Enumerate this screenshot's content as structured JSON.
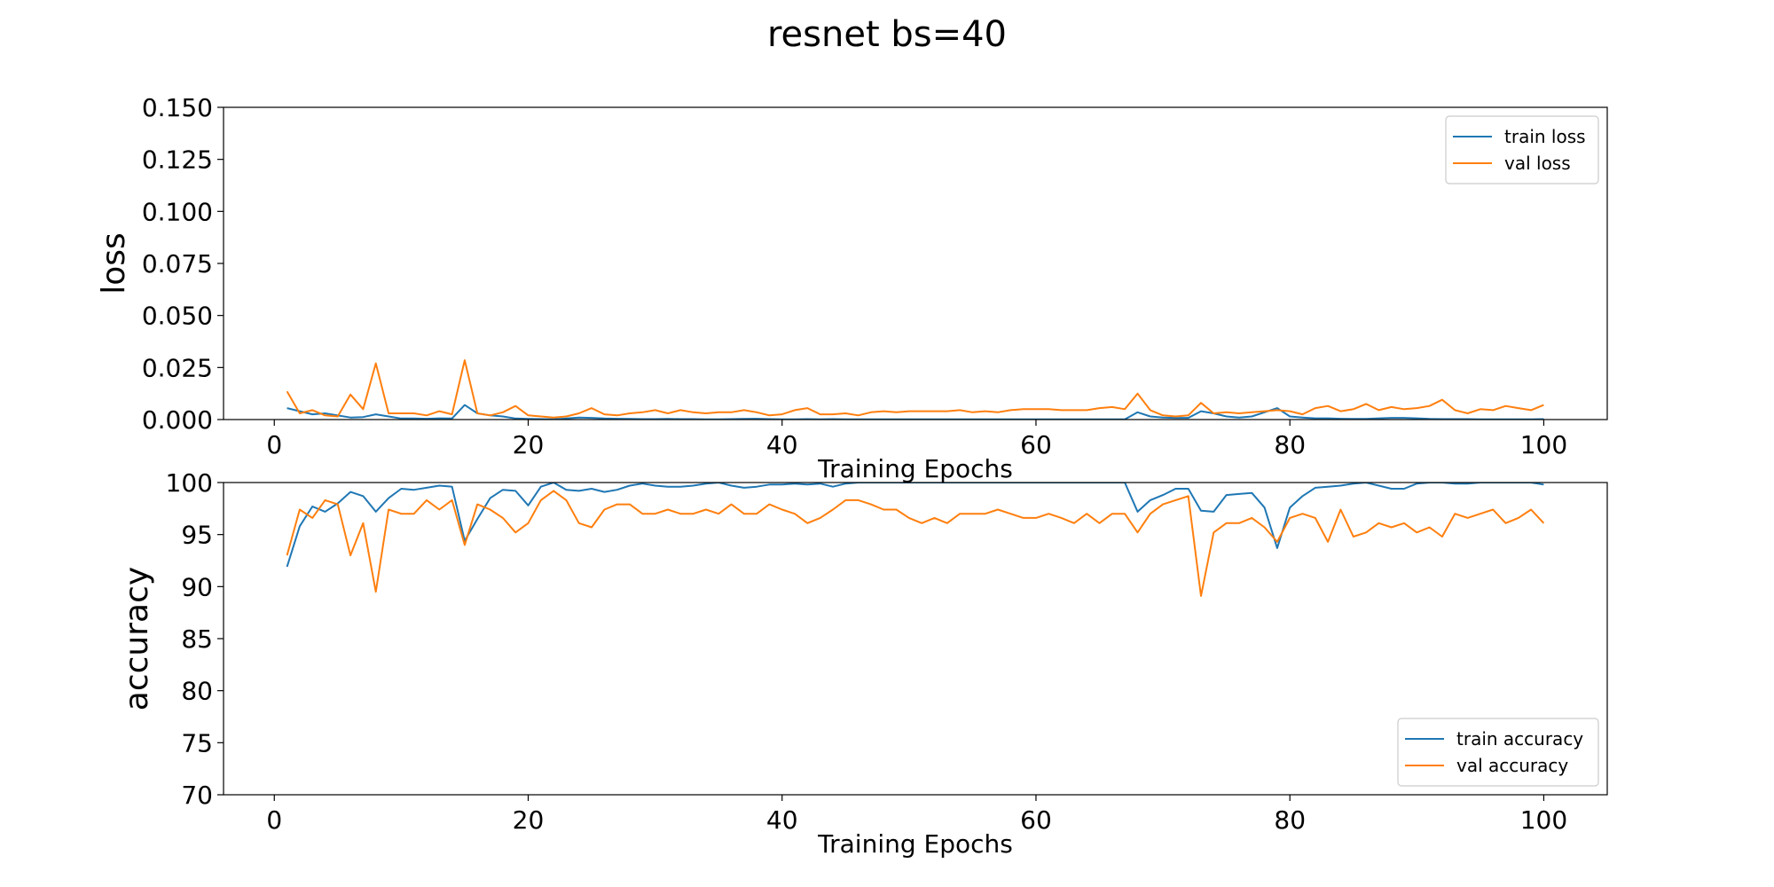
{
  "figure": {
    "title": "resnet bs=40"
  },
  "chart_data": [
    {
      "type": "line",
      "ylabel": "loss",
      "xlabel": "Training Epochs",
      "xlim": [
        -4,
        105
      ],
      "ylim": [
        0,
        0.15
      ],
      "xticks": [
        0,
        20,
        40,
        60,
        80,
        100
      ],
      "yticks": [
        0,
        0.025,
        0.05,
        0.075,
        0.1,
        0.125,
        0.15
      ],
      "ytick_labels": [
        "0.000",
        "0.025",
        "0.050",
        "0.075",
        "0.100",
        "0.125",
        "0.150"
      ],
      "legend_position": "top-right",
      "series": [
        {
          "name": "train loss",
          "color": "#1f77b4",
          "x": [
            1,
            2,
            3,
            4,
            5,
            6,
            7,
            8,
            9,
            10,
            11,
            12,
            13,
            14,
            15,
            16,
            17,
            18,
            19,
            20,
            21,
            22,
            23,
            24,
            25,
            26,
            27,
            28,
            29,
            30,
            31,
            32,
            33,
            34,
            35,
            36,
            37,
            38,
            39,
            40,
            41,
            42,
            43,
            44,
            45,
            46,
            47,
            48,
            49,
            50,
            51,
            52,
            53,
            54,
            55,
            56,
            57,
            58,
            59,
            60,
            61,
            62,
            63,
            64,
            65,
            66,
            67,
            68,
            69,
            70,
            71,
            72,
            73,
            74,
            75,
            76,
            77,
            78,
            79,
            80,
            81,
            82,
            83,
            84,
            85,
            86,
            87,
            88,
            89,
            90,
            91,
            92,
            93,
            94,
            95,
            96,
            97,
            98,
            99,
            100
          ],
          "y": [
            0.0055,
            0.004,
            0.0025,
            0.003,
            0.002,
            0.001,
            0.0012,
            0.0025,
            0.0015,
            0.0005,
            0.0005,
            0.0004,
            0.0006,
            0.0005,
            0.007,
            0.003,
            0.002,
            0.0015,
            0.0005,
            0.0003,
            0.0002,
            0.0001,
            0.0005,
            0.001,
            0.0008,
            0.0005,
            0.0004,
            0.0003,
            0.0002,
            0.0002,
            0.0003,
            0.0002,
            0.0002,
            0.0001,
            0.0001,
            0.0002,
            0.0003,
            0.0004,
            0.0002,
            0.0001,
            0.0001,
            0.0002,
            0.0001,
            0.0002,
            0.0001,
            0.0001,
            0.0001,
            0.0001,
            0.0001,
            0.0001,
            0.0001,
            0.0001,
            0.0001,
            0.0001,
            0.0001,
            0.0001,
            0.0001,
            0.0001,
            0.0001,
            0.0001,
            0.0001,
            0.0001,
            0.0001,
            0.0001,
            0.0001,
            0.0001,
            0.0001,
            0.0035,
            0.0015,
            0.001,
            0.0008,
            0.0008,
            0.004,
            0.003,
            0.0015,
            0.001,
            0.0015,
            0.0035,
            0.0055,
            0.0015,
            0.001,
            0.0006,
            0.0006,
            0.0004,
            0.0003,
            0.0003,
            0.0006,
            0.0008,
            0.0008,
            0.0006,
            0.0003,
            0.0002,
            0.0002,
            0.0002,
            0.0001,
            0.0001,
            0.0001,
            0.0001,
            0.0001,
            0.0002
          ]
        },
        {
          "name": "val loss",
          "color": "#ff7f0e",
          "x": [
            1,
            2,
            3,
            4,
            5,
            6,
            7,
            8,
            9,
            10,
            11,
            12,
            13,
            14,
            15,
            16,
            17,
            18,
            19,
            20,
            21,
            22,
            23,
            24,
            25,
            26,
            27,
            28,
            29,
            30,
            31,
            32,
            33,
            34,
            35,
            36,
            37,
            38,
            39,
            40,
            41,
            42,
            43,
            44,
            45,
            46,
            47,
            48,
            49,
            50,
            51,
            52,
            53,
            54,
            55,
            56,
            57,
            58,
            59,
            60,
            61,
            62,
            63,
            64,
            65,
            66,
            67,
            68,
            69,
            70,
            71,
            72,
            73,
            74,
            75,
            76,
            77,
            78,
            79,
            80,
            81,
            82,
            83,
            84,
            85,
            86,
            87,
            88,
            89,
            90,
            91,
            92,
            93,
            94,
            95,
            96,
            97,
            98,
            99,
            100
          ],
          "y": [
            0.0135,
            0.003,
            0.0045,
            0.002,
            0.0015,
            0.012,
            0.005,
            0.027,
            0.003,
            0.003,
            0.003,
            0.002,
            0.004,
            0.0025,
            0.0285,
            0.003,
            0.002,
            0.0035,
            0.0065,
            0.002,
            0.0015,
            0.001,
            0.0015,
            0.003,
            0.0055,
            0.0025,
            0.002,
            0.003,
            0.0035,
            0.0045,
            0.003,
            0.0045,
            0.0035,
            0.003,
            0.0035,
            0.0035,
            0.0045,
            0.0035,
            0.002,
            0.0025,
            0.0045,
            0.0055,
            0.0025,
            0.0025,
            0.003,
            0.002,
            0.0035,
            0.004,
            0.0035,
            0.004,
            0.004,
            0.004,
            0.004,
            0.0045,
            0.0035,
            0.004,
            0.0035,
            0.0045,
            0.005,
            0.005,
            0.005,
            0.0045,
            0.0045,
            0.0045,
            0.0055,
            0.006,
            0.005,
            0.0125,
            0.0045,
            0.002,
            0.0015,
            0.002,
            0.008,
            0.003,
            0.0035,
            0.003,
            0.0035,
            0.004,
            0.0045,
            0.004,
            0.0025,
            0.0055,
            0.0065,
            0.004,
            0.005,
            0.0075,
            0.0045,
            0.006,
            0.005,
            0.0055,
            0.0065,
            0.0095,
            0.0045,
            0.003,
            0.005,
            0.0045,
            0.0065,
            0.0055,
            0.0045,
            0.007
          ]
        }
      ]
    },
    {
      "type": "line",
      "ylabel": "accuracy",
      "xlabel": "Training Epochs",
      "xlim": [
        -4,
        105
      ],
      "ylim": [
        70,
        100
      ],
      "xticks": [
        0,
        20,
        40,
        60,
        80,
        100
      ],
      "yticks": [
        70,
        75,
        80,
        85,
        90,
        95,
        100
      ],
      "ytick_labels": [
        "70",
        "75",
        "80",
        "85",
        "90",
        "95",
        "100"
      ],
      "legend_position": "bottom-right",
      "series": [
        {
          "name": "train accuracy",
          "color": "#1f77b4",
          "x": [
            1,
            2,
            3,
            4,
            5,
            6,
            7,
            8,
            9,
            10,
            11,
            12,
            13,
            14,
            15,
            16,
            17,
            18,
            19,
            20,
            21,
            22,
            23,
            24,
            25,
            26,
            27,
            28,
            29,
            30,
            31,
            32,
            33,
            34,
            35,
            36,
            37,
            38,
            39,
            40,
            41,
            42,
            43,
            44,
            45,
            46,
            47,
            48,
            49,
            50,
            51,
            52,
            53,
            54,
            55,
            56,
            57,
            58,
            59,
            60,
            61,
            62,
            63,
            64,
            65,
            66,
            67,
            68,
            69,
            70,
            71,
            72,
            73,
            74,
            75,
            76,
            77,
            78,
            79,
            80,
            81,
            82,
            83,
            84,
            85,
            86,
            87,
            88,
            89,
            90,
            91,
            92,
            93,
            94,
            95,
            96,
            97,
            98,
            99,
            100
          ],
          "y": [
            91.9,
            95.8,
            97.7,
            97.2,
            98.0,
            99.1,
            98.7,
            97.2,
            98.5,
            99.4,
            99.3,
            99.5,
            99.7,
            99.6,
            94.4,
            96.5,
            98.5,
            99.3,
            99.2,
            97.8,
            99.6,
            100.0,
            99.3,
            99.2,
            99.4,
            99.1,
            99.3,
            99.7,
            99.9,
            99.7,
            99.6,
            99.6,
            99.7,
            99.9,
            100.0,
            99.7,
            99.5,
            99.6,
            99.8,
            99.8,
            99.9,
            99.8,
            99.9,
            99.6,
            99.9,
            100.0,
            100.0,
            100.0,
            100.0,
            100.0,
            100.0,
            100.0,
            100.0,
            100.0,
            100.0,
            100.0,
            100.0,
            100.0,
            100.0,
            100.0,
            100.0,
            100.0,
            100.0,
            100.0,
            100.0,
            100.0,
            100.0,
            97.2,
            98.3,
            98.8,
            99.4,
            99.4,
            97.3,
            97.2,
            98.8,
            98.9,
            99.0,
            97.6,
            93.7,
            97.6,
            98.7,
            99.5,
            99.6,
            99.7,
            99.9,
            100.0,
            99.7,
            99.4,
            99.4,
            99.9,
            100.0,
            100.0,
            99.9,
            99.9,
            100.0,
            100.0,
            100.0,
            100.0,
            100.0,
            99.8
          ]
        },
        {
          "name": "val accuracy",
          "color": "#ff7f0e",
          "x": [
            1,
            2,
            3,
            4,
            5,
            6,
            7,
            8,
            9,
            10,
            11,
            12,
            13,
            14,
            15,
            16,
            17,
            18,
            19,
            20,
            21,
            22,
            23,
            24,
            25,
            26,
            27,
            28,
            29,
            30,
            31,
            32,
            33,
            34,
            35,
            36,
            37,
            38,
            39,
            40,
            41,
            42,
            43,
            44,
            45,
            46,
            47,
            48,
            49,
            50,
            51,
            52,
            53,
            54,
            55,
            56,
            57,
            58,
            59,
            60,
            61,
            62,
            63,
            64,
            65,
            66,
            67,
            68,
            69,
            70,
            71,
            72,
            73,
            74,
            75,
            76,
            77,
            78,
            79,
            80,
            81,
            82,
            83,
            84,
            85,
            86,
            87,
            88,
            89,
            90,
            91,
            92,
            93,
            94,
            95,
            96,
            97,
            98,
            99,
            100
          ],
          "y": [
            93.0,
            97.4,
            96.6,
            98.3,
            97.9,
            93.0,
            96.1,
            89.5,
            97.4,
            97.0,
            97.0,
            98.3,
            97.4,
            98.3,
            94.0,
            97.9,
            97.4,
            96.6,
            95.2,
            96.1,
            98.3,
            99.2,
            98.3,
            96.1,
            95.7,
            97.4,
            97.9,
            97.9,
            97.0,
            97.0,
            97.4,
            97.0,
            97.0,
            97.4,
            97.0,
            97.9,
            97.0,
            97.0,
            97.9,
            97.4,
            97.0,
            96.1,
            96.6,
            97.4,
            98.3,
            98.3,
            97.9,
            97.4,
            97.4,
            96.6,
            96.1,
            96.6,
            96.1,
            97.0,
            97.0,
            97.0,
            97.4,
            97.0,
            96.6,
            96.6,
            97.0,
            96.6,
            96.1,
            97.0,
            96.1,
            97.0,
            97.0,
            95.2,
            97.0,
            97.9,
            98.3,
            98.7,
            89.1,
            95.2,
            96.1,
            96.1,
            96.6,
            95.7,
            94.3,
            96.6,
            97.0,
            96.6,
            94.3,
            97.4,
            94.8,
            95.2,
            96.1,
            95.7,
            96.1,
            95.2,
            95.7,
            94.8,
            97.0,
            96.6,
            97.0,
            97.4,
            96.1,
            96.6,
            97.4,
            96.1
          ]
        }
      ]
    }
  ]
}
